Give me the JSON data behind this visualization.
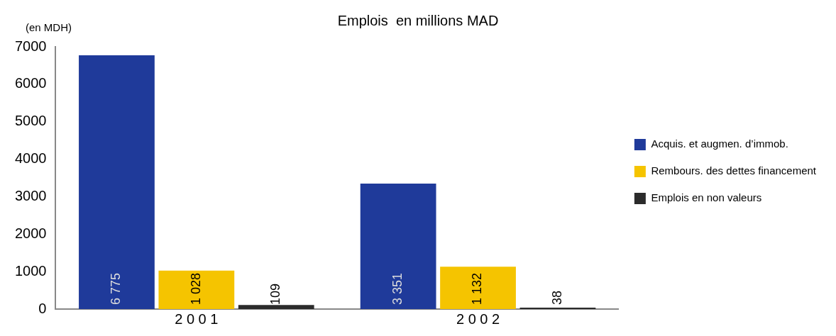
{
  "chart_data": {
    "type": "bar",
    "title": "Emplois  en millions MAD",
    "ylabel": "(en MDH)",
    "categories": [
      "2 0 0 1",
      "2 0 0 2"
    ],
    "series": [
      {
        "name": "Acquis. et augmen. d’immob.",
        "color": "#1f3a9a",
        "values": [
          6775,
          3351
        ],
        "value_labels": [
          "6 775",
          "3 351"
        ]
      },
      {
        "name": "Rembours. des dettes financement",
        "color": "#f5c400",
        "values": [
          1028,
          1132
        ],
        "value_labels": [
          "1 028",
          "1 132"
        ]
      },
      {
        "name": "Emplois en non valeurs",
        "color": "#2b2b2b",
        "values": [
          109,
          38
        ],
        "value_labels": [
          "109",
          "38"
        ]
      }
    ],
    "ylim": [
      0,
      7000
    ],
    "yticks": [
      0,
      1000,
      2000,
      3000,
      4000,
      5000,
      6000,
      7000
    ],
    "grid": false,
    "legend": "right"
  }
}
